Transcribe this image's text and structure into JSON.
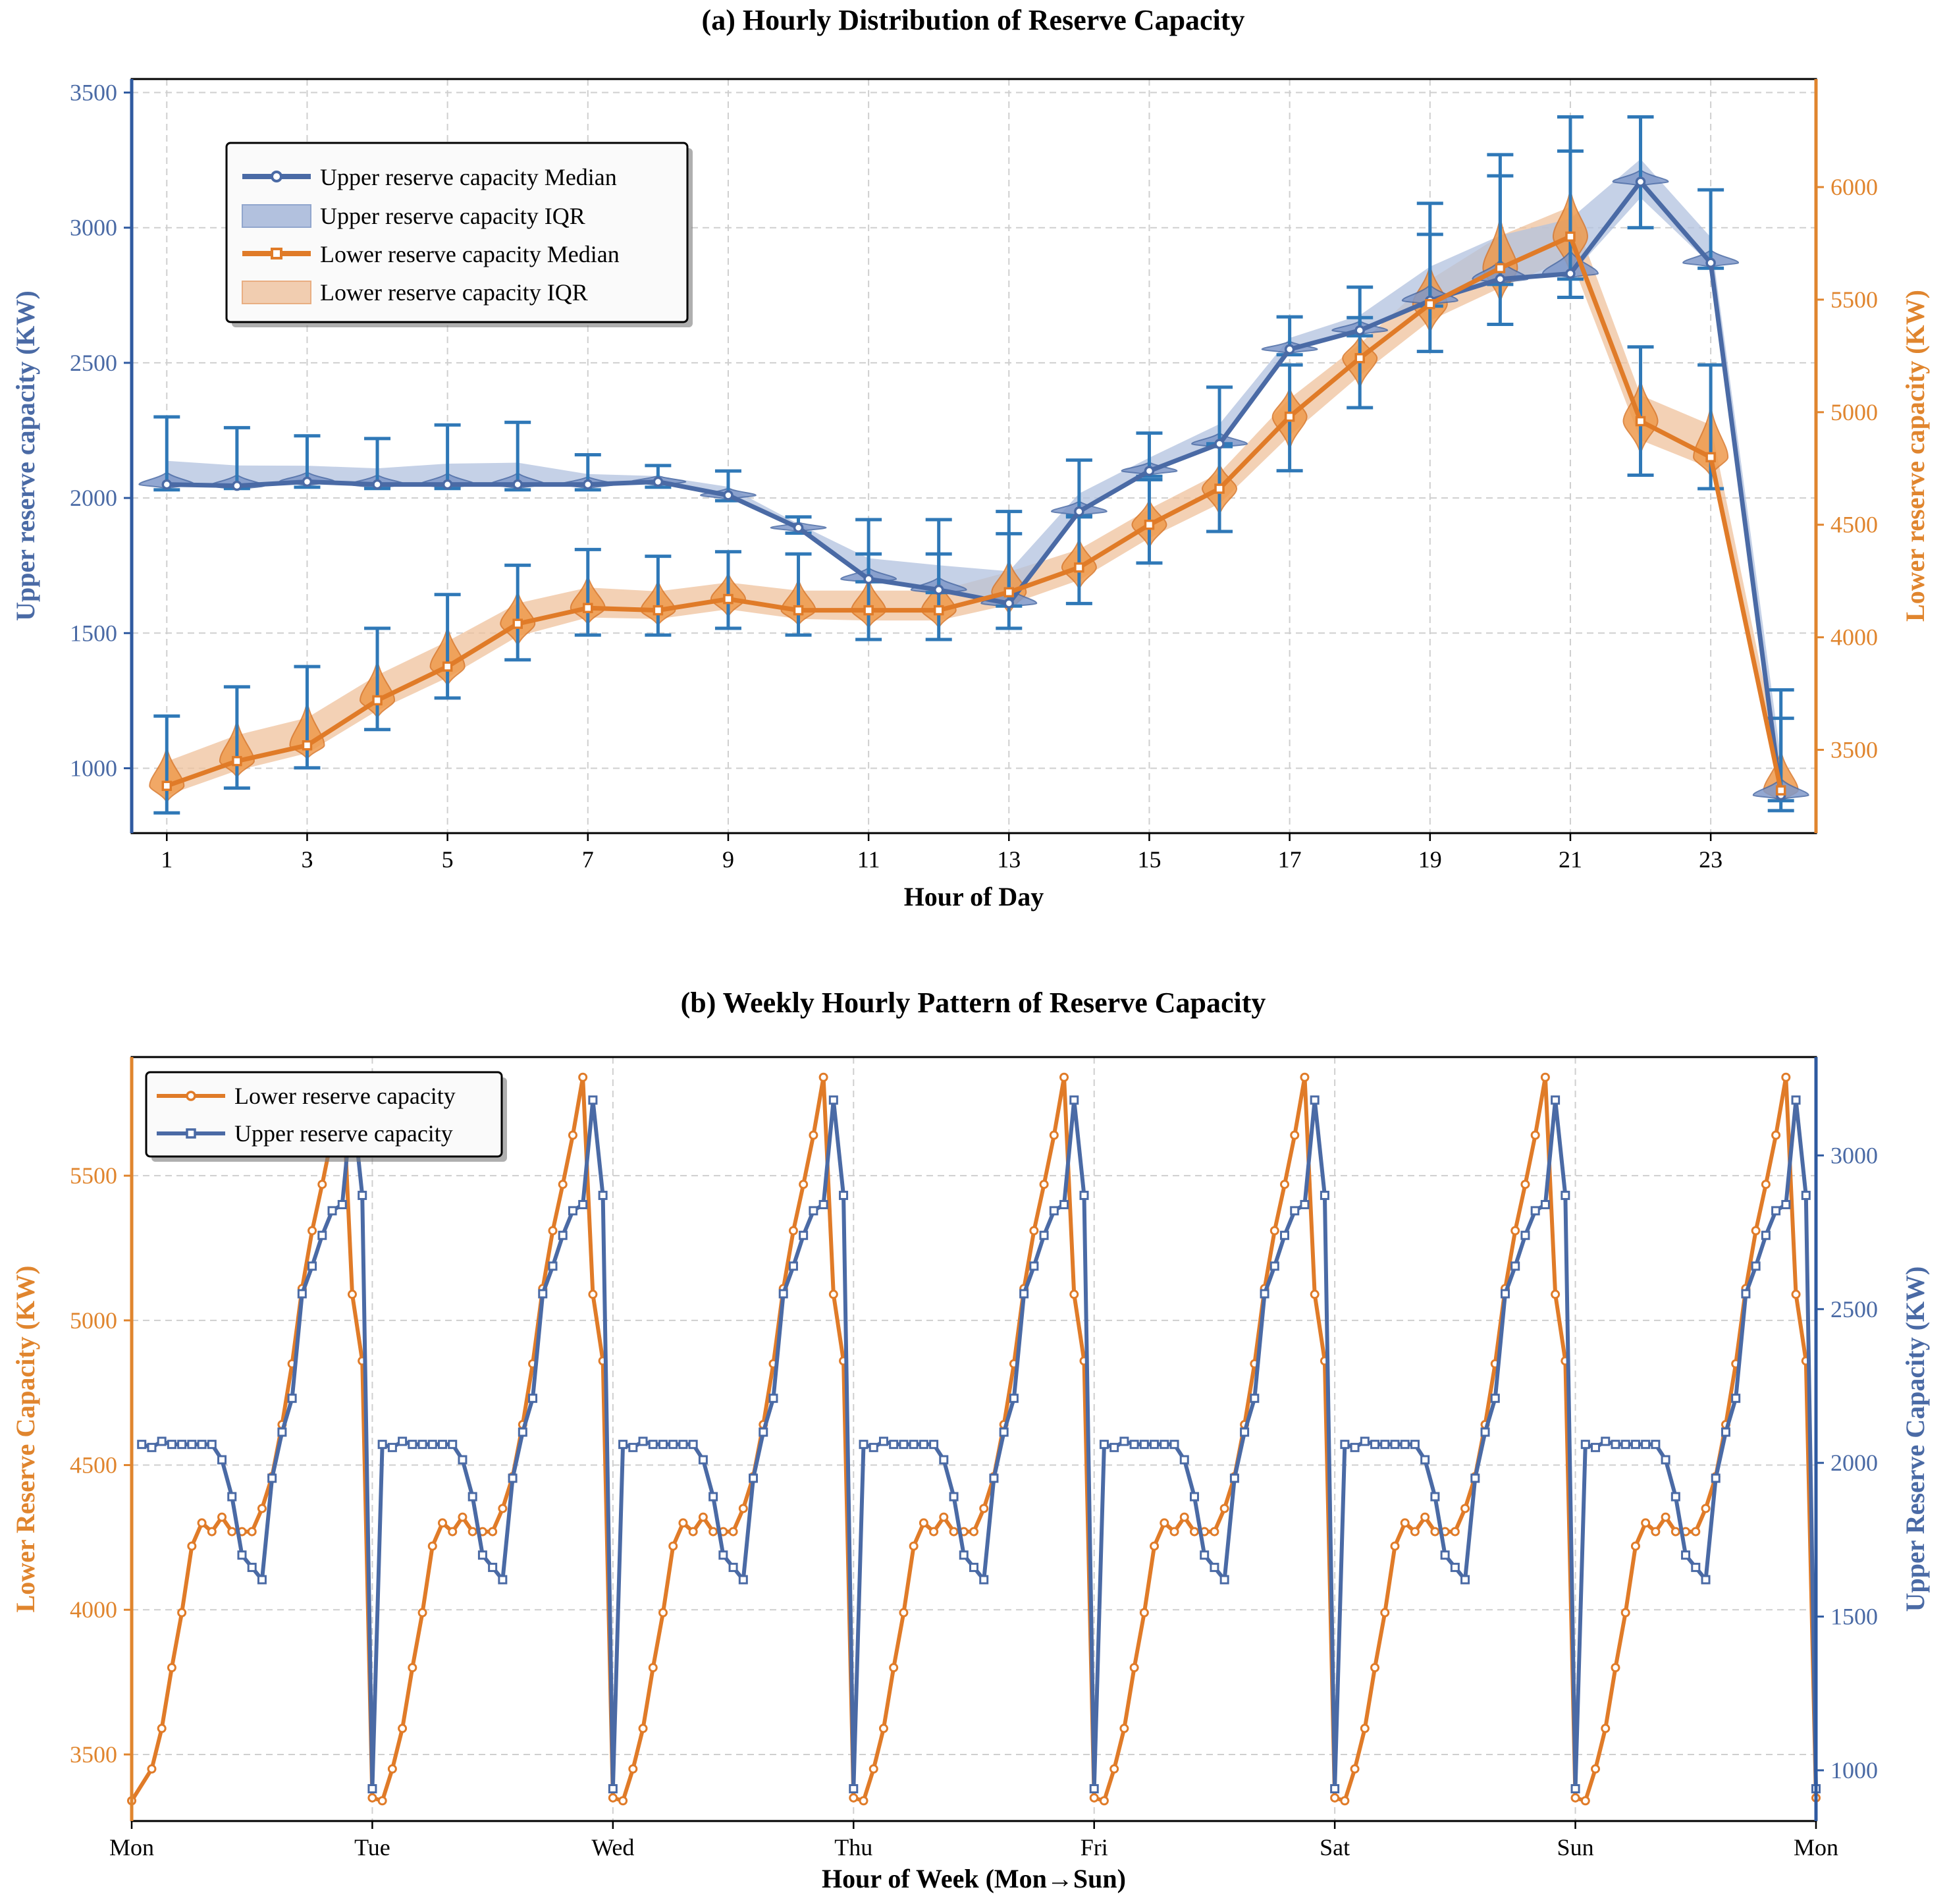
{
  "colors": {
    "upper": "#4a6aa5",
    "lower": "#e07b28",
    "whisker": "#2f78b7",
    "upper_axis": "#4a6aa5",
    "lower_axis": "#e0852e"
  },
  "chart_data": [
    {
      "type": "line",
      "title": "(a) Hourly Distribution of Reserve Capacity",
      "xlabel": "Hour of Day",
      "ylabel": "Upper reserve capacity (KW)",
      "y2label": "Lower reserve capacity (KW)",
      "xlim": [
        0.5,
        24.5
      ],
      "ylim": [
        760,
        3550
      ],
      "y2lim": [
        3130,
        6480
      ],
      "xticks": [
        "1",
        "3",
        "5",
        "7",
        "9",
        "11",
        "13",
        "15",
        "17",
        "19",
        "21",
        "23"
      ],
      "yticks": [
        "1000",
        "1500",
        "2000",
        "2500",
        "3000",
        "3500"
      ],
      "y2ticks": [
        "3500",
        "4000",
        "4500",
        "5000",
        "5500",
        "6000"
      ],
      "hours": [
        1,
        2,
        3,
        4,
        5,
        6,
        7,
        8,
        9,
        10,
        11,
        12,
        13,
        14,
        15,
        16,
        17,
        18,
        19,
        20,
        21,
        22,
        23,
        24
      ],
      "legend": {
        "upper_median": "Upper reserve capacity Median",
        "upper_iqr": "Upper reserve capacity IQR",
        "lower_median": "Lower reserve capacity Median",
        "lower_iqr": "Lower reserve capacity IQR"
      },
      "series": [
        {
          "name": "Upper reserve capacity",
          "axis": "left",
          "median": [
            2050,
            2045,
            2060,
            2050,
            2050,
            2050,
            2050,
            2060,
            2010,
            1890,
            1700,
            1660,
            1610,
            1950,
            2100,
            2200,
            2550,
            2620,
            2730,
            2810,
            2830,
            3170,
            2870,
            900
          ],
          "whisker_low": [
            2030,
            2035,
            2040,
            2035,
            2035,
            2030,
            2030,
            2040,
            1990,
            1870,
            1690,
            1650,
            1600,
            1930,
            2080,
            2190,
            2530,
            2600,
            2710,
            2790,
            2810,
            3000,
            2850,
            880
          ],
          "whisker_high": [
            2300,
            2260,
            2230,
            2220,
            2270,
            2280,
            2160,
            2120,
            2100,
            1930,
            1920,
            1920,
            1950,
            2140,
            2240,
            2410,
            2670,
            2780,
            3090,
            3270,
            3410,
            3410,
            3140,
            1290
          ]
        },
        {
          "name": "Lower reserve capacity",
          "axis": "right",
          "median": [
            3340,
            3450,
            3520,
            3720,
            3870,
            4060,
            4130,
            4120,
            4170,
            4120,
            4120,
            4120,
            4200,
            4310,
            4500,
            4660,
            4980,
            5240,
            5480,
            5640,
            5780,
            4960,
            4800,
            3320
          ],
          "whisker_low": [
            3220,
            3330,
            3420,
            3590,
            3730,
            3900,
            4010,
            4010,
            4040,
            4010,
            3990,
            3990,
            4040,
            4150,
            4330,
            4470,
            4740,
            5020,
            5270,
            5390,
            5510,
            4720,
            4660,
            3230
          ],
          "whisker_high": [
            3650,
            3780,
            3870,
            4040,
            4190,
            4320,
            4390,
            4360,
            4380,
            4370,
            4370,
            4370,
            4460,
            4540,
            4700,
            4860,
            5210,
            5420,
            5790,
            6050,
            6160,
            5290,
            5210,
            3640
          ]
        }
      ]
    },
    {
      "type": "line",
      "title": "(b) Weekly Hourly Pattern of Reserve Capacity",
      "xlabel": "Hour of Week (Mon→Sun)",
      "ylabel": "Lower Reserve Capacity (KW)",
      "y2label": "Upper Reserve Capacity (KW)",
      "xlim": [
        0,
        168
      ],
      "ylim": [
        3270,
        5910
      ],
      "y2lim": [
        835,
        3320
      ],
      "xticks": [
        "Mon",
        "Tue",
        "Wed",
        "Thu",
        "Fri",
        "Sat",
        "Sun",
        "Mon"
      ],
      "yticks": [
        "3500",
        "4000",
        "4500",
        "5000",
        "5500"
      ],
      "y2ticks": [
        "1000",
        "1500",
        "2000",
        "2500",
        "3000"
      ],
      "days": 7,
      "hours_per_day": 24,
      "legend": {
        "lower": "Lower reserve capacity",
        "upper": "Upper reserve capacity"
      },
      "daily_profile_lower": [
        3340,
        3450,
        3590,
        3800,
        3990,
        4220,
        4300,
        4270,
        4320,
        4270,
        4270,
        4270,
        4350,
        4460,
        4640,
        4850,
        5110,
        5310,
        5470,
        5640,
        5840,
        5090,
        4860,
        3350
      ],
      "daily_profile_upper": [
        2060,
        2050,
        2070,
        2060,
        2060,
        2060,
        2060,
        2060,
        2010,
        1890,
        1700,
        1660,
        1620,
        1950,
        2100,
        2210,
        2550,
        2640,
        2740,
        2820,
        2840,
        3180,
        2870,
        940
      ]
    }
  ]
}
